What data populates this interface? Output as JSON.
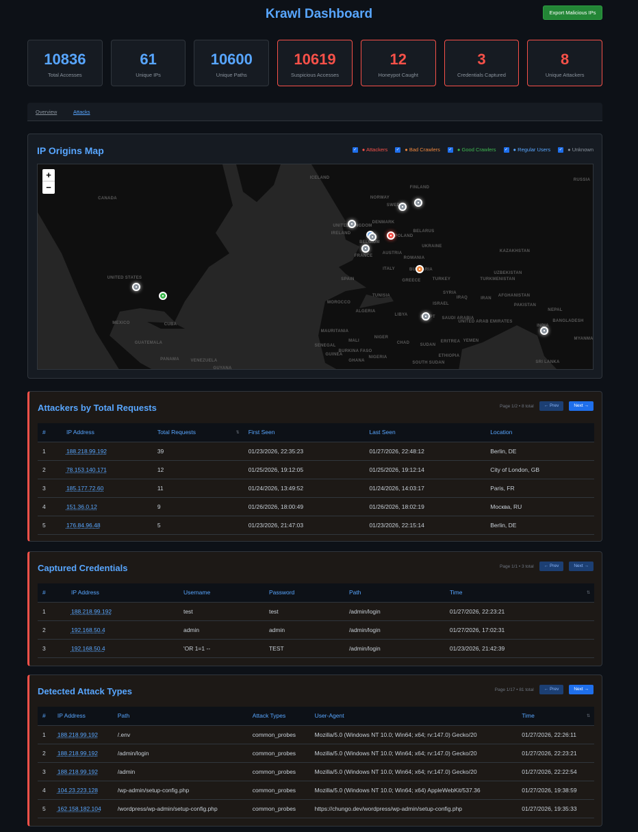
{
  "header": {
    "title": "Krawl Dashboard",
    "export_label": "Export Malicious IPs"
  },
  "stats": [
    {
      "value": "10836",
      "label": "Total Accesses",
      "alert": false
    },
    {
      "value": "61",
      "label": "Unique IPs",
      "alert": false
    },
    {
      "value": "10600",
      "label": "Unique Paths",
      "alert": false
    },
    {
      "value": "10619",
      "label": "Suspicious Accesses",
      "alert": true
    },
    {
      "value": "12",
      "label": "Honeypot Caught",
      "alert": true
    },
    {
      "value": "3",
      "label": "Credentials Captured",
      "alert": true
    },
    {
      "value": "8",
      "label": "Unique Attackers",
      "alert": true
    }
  ],
  "tabs": [
    {
      "label": "Overview"
    },
    {
      "label": "Attacks",
      "active": true
    }
  ],
  "map": {
    "title": "IP Origins Map",
    "legend": [
      {
        "label": "● Attackers",
        "color": "#f85149",
        "checked": true
      },
      {
        "label": "● Bad Crawlers",
        "color": "#f0883e",
        "checked": true
      },
      {
        "label": "● Good Crawlers",
        "color": "#3fb950",
        "checked": true
      },
      {
        "label": "● Regular Users",
        "color": "#58a6ff",
        "checked": true
      },
      {
        "label": "● Unknown",
        "color": "#8b949e",
        "checked": true
      }
    ],
    "zoom_in": "+",
    "zoom_out": "−",
    "labels": [
      "CANADA",
      "UNITED STATES",
      "MEXICO",
      "CUBA",
      "GUATEMALA",
      "PANAMA",
      "VENEZUELA",
      "GUYANA",
      "ICELAND",
      "FINLAND",
      "NORWAY",
      "SWEDEN",
      "DENMARK",
      "UNITED KINGDOM",
      "IRELAND",
      "BELGIUM",
      "POLAND",
      "BELARUS",
      "UKRAINE",
      "FRANCE",
      "AUSTRIA",
      "ROMANIA",
      "ITALY",
      "BULGARIA",
      "SPAIN",
      "GREECE",
      "TURKEY",
      "TUNISIA",
      "MOROCCO",
      "ALGERIA",
      "LIBYA",
      "EGYPT",
      "ISRAEL",
      "SYRIA",
      "IRAQ",
      "IRAN",
      "SAUDI ARABIA",
      "UNITED ARAB EMIRATES",
      "KAZAKHSTAN",
      "UZBEKISTAN",
      "TURKMENISTAN",
      "AFGHANISTAN",
      "PAKISTAN",
      "NEPAL",
      "BANGLADESH",
      "INDIA",
      "MAURITANIA",
      "MALI",
      "NIGER",
      "CHAD",
      "SUDAN",
      "ERITREA",
      "YEMEN",
      "ETHIOPIA",
      "SOUTH SUDAN",
      "NIGERIA",
      "BURKINA FASO",
      "GHANA",
      "GUINEA",
      "SENEGAL",
      "RUSSIA",
      "MYANMAR",
      "SRI LANKA"
    ],
    "markers": [
      "unknown",
      "good",
      "unknown",
      "regular",
      "unknown",
      "unknown",
      "attacker",
      "unknown",
      "unknown",
      "bad",
      "unknown",
      "unknown"
    ]
  },
  "attackers": {
    "title": "Attackers by Total Requests",
    "page_info": "Page 1/2 • 8 total",
    "prev": "← Prev",
    "next": "Next →",
    "columns": [
      "#",
      "IP Address",
      "Total Requests",
      "⇅",
      "First Seen",
      "Last Seen",
      "Location"
    ],
    "rows": [
      [
        "1",
        "188.218.99.192",
        "39",
        "",
        "01/23/2026, 22:35:23",
        "01/27/2026, 22:48:12",
        "Berlin, DE"
      ],
      [
        "2",
        "78.153.140.171",
        "12",
        "",
        "01/25/2026, 19:12:05",
        "01/25/2026, 19:12:14",
        "City of London, GB"
      ],
      [
        "3",
        "185.177.72.60",
        "11",
        "",
        "01/24/2026, 13:49:52",
        "01/24/2026, 14:03:17",
        "Paris, FR"
      ],
      [
        "4",
        "151.36.0.12",
        "9",
        "",
        "01/26/2026, 18:00:49",
        "01/26/2026, 18:02:19",
        "Москва, RU"
      ],
      [
        "5",
        "176.84.96.48",
        "5",
        "",
        "01/23/2026, 21:47:03",
        "01/23/2026, 22:15:14",
        "Berlin, DE"
      ]
    ]
  },
  "credentials": {
    "title": "Captured Credentials",
    "page_info": "Page 1/1 • 3 total",
    "prev": "← Prev",
    "next": "Next →",
    "columns": [
      "#",
      "IP Address",
      "Username",
      "Password",
      "Path",
      "Time",
      "⇅"
    ],
    "rows": [
      [
        "1",
        "188.218.99.192",
        "test",
        "test",
        "/admin/login",
        "01/27/2026, 22:23:21",
        ""
      ],
      [
        "2",
        "192.168.50.4",
        "admin",
        "admin",
        "/admin/login",
        "01/27/2026, 17:02:31",
        ""
      ],
      [
        "3",
        "192.168.50.4",
        "'OR 1=1 --",
        "TEST",
        "/admin/login",
        "01/23/2026, 21:42:39",
        ""
      ]
    ]
  },
  "attacks": {
    "title": "Detected Attack Types",
    "page_info": "Page 1/17 • 81 total",
    "prev": "← Prev",
    "next": "Next →",
    "columns": [
      "#",
      "IP Address",
      "Path",
      "Attack Types",
      "User-Agent",
      "Time",
      "⇅"
    ],
    "rows": [
      [
        "1",
        "188.218.99.192",
        "/.env",
        "common_probes",
        "Mozilla/5.0 (Windows NT 10.0; Win64; x64; rv:147.0) Gecko/20",
        "01/27/2026, 22:26:11",
        ""
      ],
      [
        "2",
        "188.218.99.192",
        "/admin/login",
        "common_probes",
        "Mozilla/5.0 (Windows NT 10.0; Win64; x64; rv:147.0) Gecko/20",
        "01/27/2026, 22:23:21",
        ""
      ],
      [
        "3",
        "188.218.99.192",
        "/admin",
        "common_probes",
        "Mozilla/5.0 (Windows NT 10.0; Win64; x64; rv:147.0) Gecko/20",
        "01/27/2026, 22:22:54",
        ""
      ],
      [
        "4",
        "104.23.223.128",
        "/wp-admin/setup-config.php",
        "common_probes",
        "Mozilla/5.0 (Windows NT 10.0; Win64; x64) AppleWebKit/537.36",
        "01/27/2026, 19:38:59",
        ""
      ],
      [
        "5",
        "162.158.182.104",
        "/wordpress/wp-admin/setup-config.php",
        "common_probes",
        "https://chungo.dev/wordpress/wp-admin/setup-config.php",
        "01/27/2026, 19:35:33",
        ""
      ]
    ]
  }
}
